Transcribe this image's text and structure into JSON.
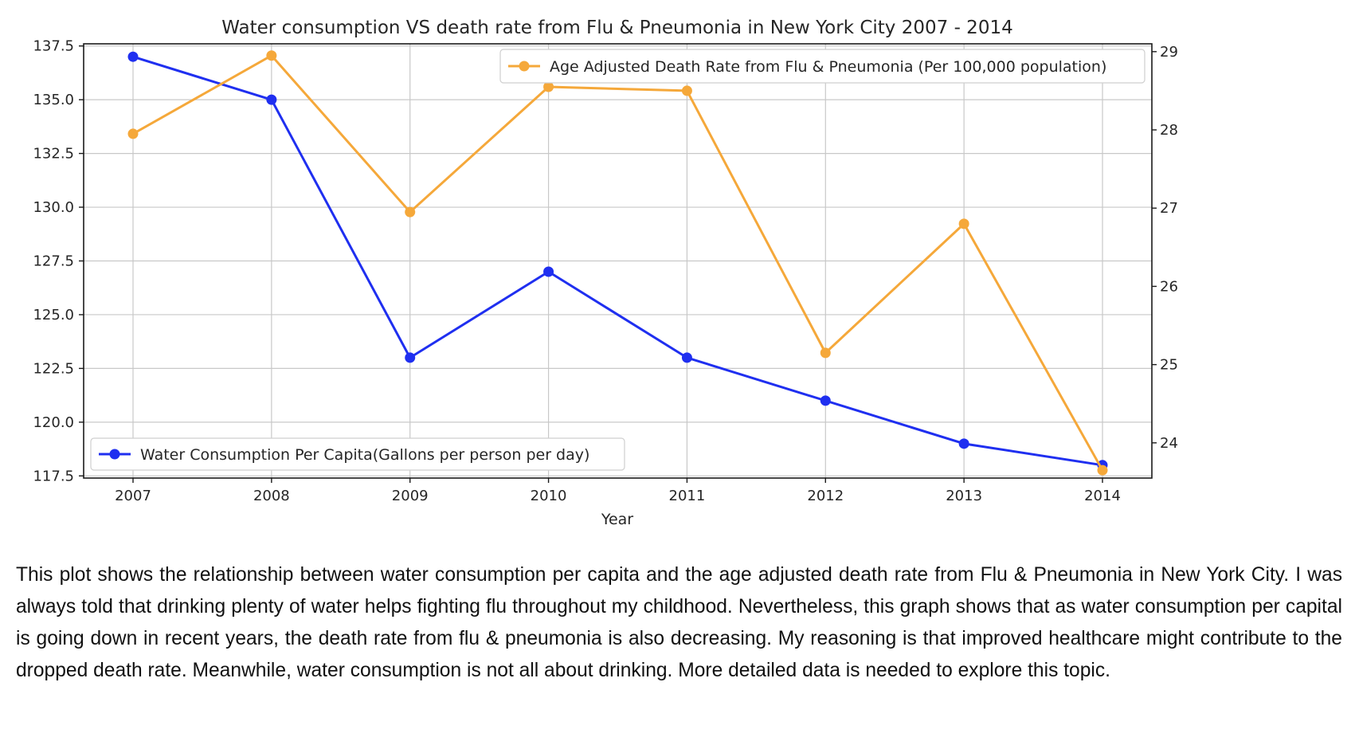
{
  "chart_data": {
    "type": "line",
    "title": "Water consumption VS death rate from Flu & Pneumonia in New York City 2007 - 2014",
    "xlabel": "Year",
    "categories": [
      "2007",
      "2008",
      "2009",
      "2010",
      "2011",
      "2012",
      "2013",
      "2014"
    ],
    "grid": true,
    "y_left": {
      "range": [
        117.4,
        137.6
      ],
      "ticks": [
        "117.5",
        "120.0",
        "122.5",
        "125.0",
        "127.5",
        "130.0",
        "132.5",
        "135.0",
        "137.5"
      ]
    },
    "y_right": {
      "range": [
        23.55,
        29.1
      ],
      "ticks": [
        "24",
        "25",
        "26",
        "27",
        "28",
        "29"
      ]
    },
    "series": [
      {
        "name": "Water Consumption Per Capita(Gallons per person per day)",
        "axis": "left",
        "color": "#1f2ff0",
        "values": [
          137,
          135,
          123,
          127,
          123,
          121,
          119,
          118
        ],
        "legend_position": "lower-left"
      },
      {
        "name": "Age Adjusted Death Rate from Flu & Pneumonia (Per 100,000 population)",
        "axis": "right",
        "color": "#f5a83a",
        "values": [
          27.95,
          28.95,
          26.95,
          28.55,
          28.5,
          25.15,
          26.8,
          23.65
        ],
        "legend_position": "upper-right"
      }
    ]
  },
  "caption": "This plot shows the relationship between water consumption per capita and the age adjusted death rate from Flu & Pneumonia in New York City. I was always told that drinking plenty of water helps fighting flu throughout my childhood. Nevertheless, this graph shows that as water consumption per capital is going down in recent years, the death rate from flu & pneumonia is also decreasing. My reasoning is that improved healthcare might contribute to the dropped death rate. Meanwhile, water consumption is not all about drinking. More detailed data is needed to explore this topic."
}
